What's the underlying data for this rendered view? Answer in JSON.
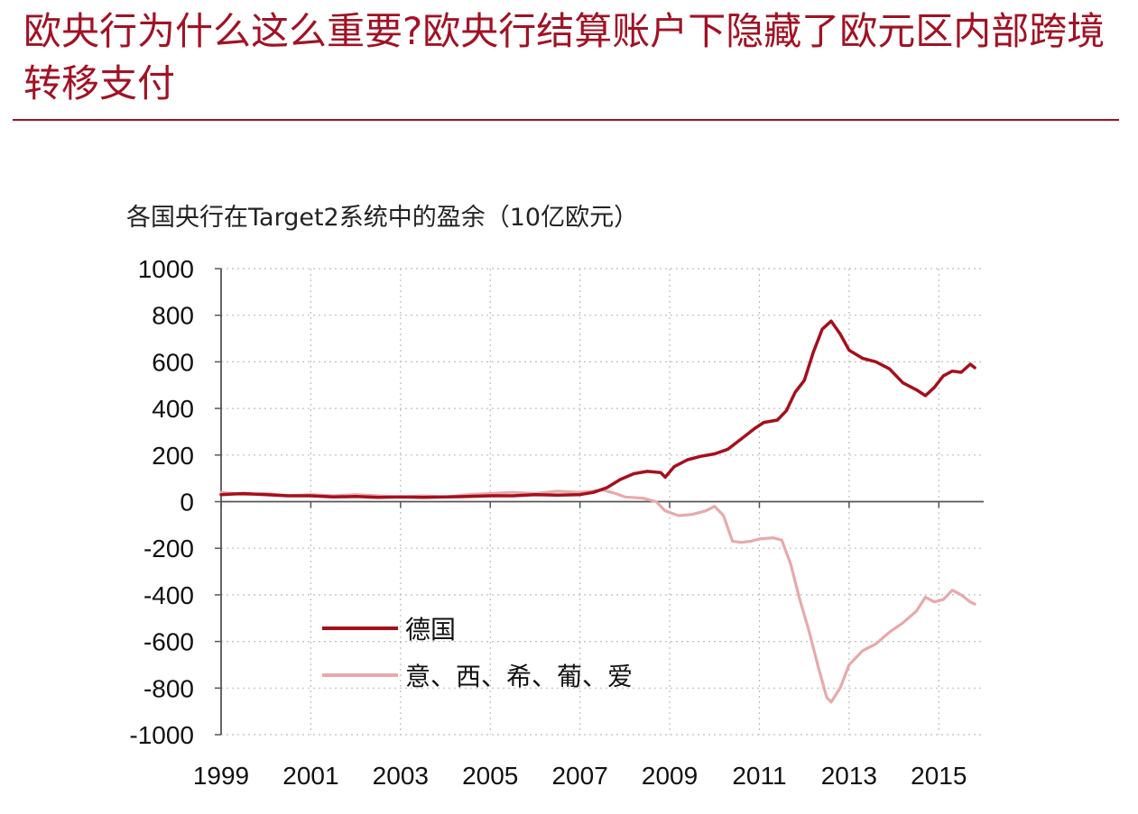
{
  "title": "欧央行为什么这么重要?欧央行结算账户下隐藏了欧元区内部跨境转移支付",
  "colors": {
    "title": "#a11224",
    "series_germany": "#a50f1c",
    "series_periphery": "#e8a9ac",
    "grid": "#bdbdbd",
    "axis": "#555555"
  },
  "chart_data": {
    "type": "line",
    "title": "各国央行在Target2系统中的盈余（10亿欧元）",
    "xlabel": "",
    "ylabel": "",
    "xlim": [
      1999,
      2016
    ],
    "ylim": [
      -1000,
      1000
    ],
    "x_ticks": [
      "1999",
      "2001",
      "2003",
      "2005",
      "2007",
      "2009",
      "2011",
      "2013",
      "2015"
    ],
    "y_ticks": [
      "1000",
      "800",
      "600",
      "400",
      "200",
      "0",
      "-200",
      "-400",
      "-600",
      "-800",
      "-1000"
    ],
    "grid": true,
    "legend_position": "lower-left",
    "series": [
      {
        "name": "德国",
        "points": [
          [
            1999.0,
            30
          ],
          [
            1999.5,
            35
          ],
          [
            2000.0,
            30
          ],
          [
            2000.5,
            25
          ],
          [
            2001.0,
            25
          ],
          [
            2001.5,
            20
          ],
          [
            2002.0,
            22
          ],
          [
            2002.5,
            18
          ],
          [
            2003.0,
            20
          ],
          [
            2003.5,
            18
          ],
          [
            2004.0,
            20
          ],
          [
            2004.5,
            22
          ],
          [
            2005.0,
            25
          ],
          [
            2005.5,
            25
          ],
          [
            2006.0,
            30
          ],
          [
            2006.5,
            28
          ],
          [
            2007.0,
            30
          ],
          [
            2007.3,
            40
          ],
          [
            2007.6,
            60
          ],
          [
            2007.9,
            95
          ],
          [
            2008.2,
            120
          ],
          [
            2008.5,
            130
          ],
          [
            2008.8,
            125
          ],
          [
            2008.9,
            105
          ],
          [
            2009.1,
            150
          ],
          [
            2009.4,
            180
          ],
          [
            2009.7,
            195
          ],
          [
            2010.0,
            205
          ],
          [
            2010.3,
            225
          ],
          [
            2010.6,
            270
          ],
          [
            2010.9,
            315
          ],
          [
            2011.1,
            340
          ],
          [
            2011.4,
            350
          ],
          [
            2011.6,
            390
          ],
          [
            2011.8,
            470
          ],
          [
            2012.0,
            520
          ],
          [
            2012.2,
            640
          ],
          [
            2012.4,
            740
          ],
          [
            2012.6,
            775
          ],
          [
            2012.8,
            720
          ],
          [
            2013.0,
            650
          ],
          [
            2013.3,
            615
          ],
          [
            2013.6,
            600
          ],
          [
            2013.9,
            570
          ],
          [
            2014.2,
            510
          ],
          [
            2014.5,
            480
          ],
          [
            2014.7,
            455
          ],
          [
            2014.9,
            490
          ],
          [
            2015.1,
            540
          ],
          [
            2015.3,
            560
          ],
          [
            2015.5,
            555
          ],
          [
            2015.7,
            590
          ],
          [
            2015.8,
            575
          ]
        ]
      },
      {
        "name": "意、西、希、葡、爱",
        "points": [
          [
            1999.0,
            40
          ],
          [
            1999.5,
            30
          ],
          [
            2000.0,
            35
          ],
          [
            2000.5,
            25
          ],
          [
            2001.0,
            30
          ],
          [
            2001.5,
            25
          ],
          [
            2002.0,
            30
          ],
          [
            2002.5,
            25
          ],
          [
            2003.0,
            20
          ],
          [
            2003.5,
            25
          ],
          [
            2004.0,
            20
          ],
          [
            2004.5,
            30
          ],
          [
            2005.0,
            35
          ],
          [
            2005.5,
            40
          ],
          [
            2006.0,
            35
          ],
          [
            2006.5,
            45
          ],
          [
            2007.0,
            40
          ],
          [
            2007.5,
            50
          ],
          [
            2007.8,
            35
          ],
          [
            2008.0,
            20
          ],
          [
            2008.4,
            15
          ],
          [
            2008.7,
            0
          ],
          [
            2008.9,
            -40
          ],
          [
            2009.2,
            -60
          ],
          [
            2009.5,
            -55
          ],
          [
            2009.8,
            -40
          ],
          [
            2010.0,
            -20
          ],
          [
            2010.2,
            -60
          ],
          [
            2010.4,
            -170
          ],
          [
            2010.6,
            -175
          ],
          [
            2010.8,
            -170
          ],
          [
            2011.0,
            -160
          ],
          [
            2011.3,
            -155
          ],
          [
            2011.5,
            -165
          ],
          [
            2011.7,
            -270
          ],
          [
            2011.9,
            -420
          ],
          [
            2012.1,
            -550
          ],
          [
            2012.3,
            -700
          ],
          [
            2012.5,
            -840
          ],
          [
            2012.6,
            -860
          ],
          [
            2012.8,
            -800
          ],
          [
            2013.0,
            -700
          ],
          [
            2013.3,
            -640
          ],
          [
            2013.6,
            -610
          ],
          [
            2013.9,
            -560
          ],
          [
            2014.2,
            -520
          ],
          [
            2014.5,
            -470
          ],
          [
            2014.7,
            -410
          ],
          [
            2014.9,
            -430
          ],
          [
            2015.1,
            -420
          ],
          [
            2015.3,
            -380
          ],
          [
            2015.5,
            -400
          ],
          [
            2015.7,
            -430
          ],
          [
            2015.8,
            -440
          ]
        ]
      }
    ]
  }
}
